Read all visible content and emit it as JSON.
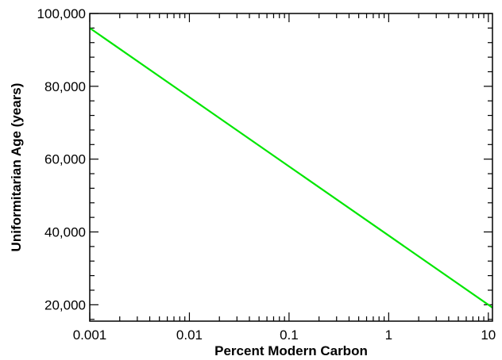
{
  "chart_data": {
    "type": "line",
    "title": "",
    "xlabel": "Percent Modern Carbon",
    "ylabel": "Uniformitarian Age (years)",
    "x_scale": "log",
    "xlim": [
      0.001,
      11
    ],
    "ylim": [
      15500,
      100000
    ],
    "x_ticks": [
      {
        "value": 0.001,
        "label": "0.001"
      },
      {
        "value": 0.01,
        "label": "0.01"
      },
      {
        "value": 0.1,
        "label": "0.1"
      },
      {
        "value": 1,
        "label": "1"
      },
      {
        "value": 10,
        "label": "10"
      }
    ],
    "y_ticks": [
      {
        "value": 20000,
        "label": "20,000"
      },
      {
        "value": 40000,
        "label": "40,000"
      },
      {
        "value": 60000,
        "label": "60,000"
      },
      {
        "value": 80000,
        "label": "80,000"
      },
      {
        "value": 100000,
        "label": "100,000"
      }
    ],
    "grid": false,
    "legend": "none",
    "series": [
      {
        "color": "#00e600",
        "x": [
          0.001,
          0.01,
          0.1,
          1,
          10,
          11
        ],
        "y": [
          96000,
          77000,
          58000,
          39000,
          20000,
          19200
        ]
      }
    ]
  }
}
